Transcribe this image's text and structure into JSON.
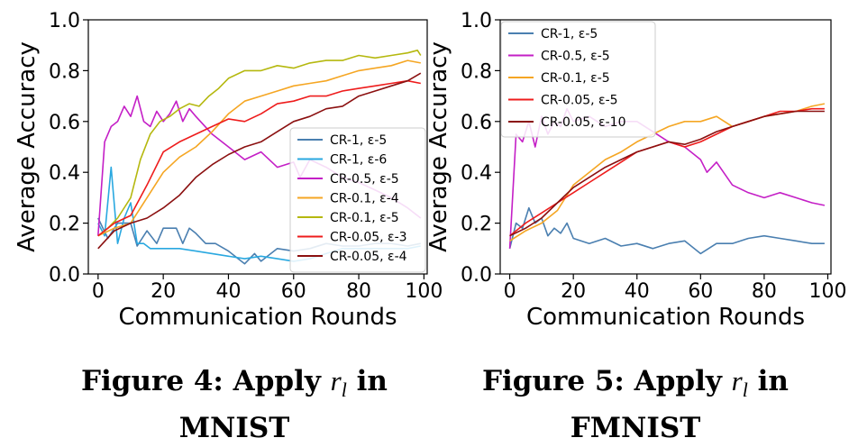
{
  "figures": [
    {
      "caption_prefix": "Figure 4: Apply ",
      "caption_math": "r",
      "caption_sub": "l",
      "caption_suffix": " in",
      "caption_line2": "MNIST"
    },
    {
      "caption_prefix": "Figure 5: Apply ",
      "caption_math": "r",
      "caption_sub": "l",
      "caption_suffix": " in",
      "caption_line2": "FMNIST"
    }
  ],
  "chart_data": [
    {
      "type": "line",
      "xlabel": "Communication Rounds",
      "ylabel": "Average Accuracy",
      "xlim": [
        -3,
        101
      ],
      "ylim": [
        0.0,
        1.0
      ],
      "xticks": [
        0,
        20,
        40,
        60,
        80,
        100
      ],
      "yticks": [
        0.0,
        0.2,
        0.4,
        0.6,
        0.8,
        1.0
      ],
      "tick_labels_y": [
        "0.0",
        "0.2",
        "0.4",
        "0.6",
        "0.8",
        "1.0"
      ],
      "tick_labels_x": [
        "0",
        "20",
        "40",
        "60",
        "80",
        "100"
      ],
      "grid": false,
      "legend_position": "right",
      "series": [
        {
          "name": "CR-1, ε-5",
          "color": "#4a7fb0",
          "x": [
            0,
            3,
            6,
            10,
            12,
            15,
            18,
            20,
            24,
            26,
            28,
            30,
            33,
            36,
            40,
            43,
            45,
            48,
            50,
            55,
            60,
            65,
            70,
            75,
            80,
            85,
            90,
            95,
            99
          ],
          "y": [
            0.22,
            0.14,
            0.2,
            0.2,
            0.11,
            0.17,
            0.12,
            0.18,
            0.18,
            0.12,
            0.18,
            0.16,
            0.12,
            0.12,
            0.09,
            0.06,
            0.04,
            0.08,
            0.05,
            0.1,
            0.09,
            0.1,
            0.12,
            0.11,
            0.11,
            0.12,
            0.12,
            0.11,
            0.12
          ]
        },
        {
          "name": "CR-1, ε-6",
          "color": "#29a8e0",
          "x": [
            0,
            2,
            4,
            6,
            8,
            10,
            12,
            14,
            16,
            20,
            25,
            30,
            35,
            40,
            45,
            50,
            55,
            60,
            65,
            70,
            75,
            80,
            85,
            90,
            95,
            99
          ],
          "y": [
            0.2,
            0.15,
            0.42,
            0.12,
            0.22,
            0.28,
            0.12,
            0.12,
            0.1,
            0.1,
            0.1,
            0.09,
            0.08,
            0.07,
            0.06,
            0.07,
            0.06,
            0.05,
            0.06,
            0.08,
            0.1,
            0.1,
            0.1,
            0.1,
            0.1,
            0.11
          ]
        },
        {
          "name": "CR-0.5, ε-5",
          "color": "#c41fc6",
          "x": [
            0,
            2,
            4,
            6,
            8,
            10,
            12,
            14,
            16,
            18,
            20,
            22,
            24,
            26,
            28,
            30,
            35,
            40,
            45,
            50,
            55,
            60,
            62,
            65,
            70,
            75,
            80,
            85,
            90,
            95,
            99
          ],
          "y": [
            0.15,
            0.52,
            0.58,
            0.6,
            0.66,
            0.62,
            0.7,
            0.6,
            0.58,
            0.64,
            0.6,
            0.63,
            0.68,
            0.6,
            0.65,
            0.62,
            0.55,
            0.5,
            0.45,
            0.48,
            0.42,
            0.44,
            0.38,
            0.45,
            0.42,
            0.38,
            0.36,
            0.33,
            0.3,
            0.26,
            0.22
          ]
        },
        {
          "name": "CR-0.1, ε-4",
          "color": "#f5a623",
          "x": [
            0,
            5,
            10,
            15,
            20,
            25,
            30,
            35,
            40,
            45,
            50,
            55,
            60,
            65,
            70,
            75,
            80,
            85,
            90,
            95,
            99
          ],
          "y": [
            0.15,
            0.18,
            0.2,
            0.3,
            0.4,
            0.46,
            0.5,
            0.56,
            0.63,
            0.68,
            0.7,
            0.72,
            0.74,
            0.75,
            0.76,
            0.78,
            0.8,
            0.81,
            0.82,
            0.84,
            0.83
          ]
        },
        {
          "name": "CR-0.1, ε-5",
          "color": "#b5b80f",
          "x": [
            0,
            3,
            6,
            10,
            13,
            16,
            19,
            22,
            25,
            28,
            31,
            34,
            37,
            40,
            45,
            50,
            55,
            60,
            65,
            70,
            75,
            80,
            85,
            90,
            95,
            98,
            99
          ],
          "y": [
            0.15,
            0.18,
            0.22,
            0.3,
            0.45,
            0.55,
            0.6,
            0.62,
            0.65,
            0.67,
            0.66,
            0.7,
            0.73,
            0.77,
            0.8,
            0.8,
            0.82,
            0.81,
            0.83,
            0.84,
            0.84,
            0.86,
            0.85,
            0.86,
            0.87,
            0.88,
            0.86
          ]
        },
        {
          "name": "CR-0.05, ε-3",
          "color": "#ee1c1c",
          "x": [
            0,
            5,
            10,
            15,
            20,
            25,
            30,
            35,
            40,
            45,
            50,
            55,
            60,
            65,
            70,
            75,
            80,
            85,
            90,
            95,
            99
          ],
          "y": [
            0.15,
            0.2,
            0.23,
            0.35,
            0.48,
            0.52,
            0.55,
            0.58,
            0.61,
            0.6,
            0.63,
            0.67,
            0.68,
            0.7,
            0.7,
            0.72,
            0.73,
            0.74,
            0.75,
            0.76,
            0.75
          ]
        },
        {
          "name": "CR-0.05, ε-4",
          "color": "#8b1010",
          "x": [
            0,
            5,
            10,
            15,
            20,
            25,
            30,
            35,
            40,
            45,
            50,
            55,
            60,
            65,
            70,
            75,
            80,
            85,
            90,
            95,
            99
          ],
          "y": [
            0.1,
            0.17,
            0.2,
            0.22,
            0.26,
            0.31,
            0.38,
            0.43,
            0.47,
            0.5,
            0.52,
            0.56,
            0.6,
            0.62,
            0.65,
            0.66,
            0.7,
            0.72,
            0.74,
            0.76,
            0.79
          ]
        }
      ]
    },
    {
      "type": "line",
      "xlabel": "Communication Rounds",
      "ylabel": "Average Accuracy",
      "xlim": [
        -3,
        101
      ],
      "ylim": [
        0.0,
        1.0
      ],
      "xticks": [
        0,
        20,
        40,
        60,
        80,
        100
      ],
      "yticks": [
        0.0,
        0.2,
        0.4,
        0.6,
        0.8,
        1.0
      ],
      "tick_labels_y": [
        "0.0",
        "0.2",
        "0.4",
        "0.6",
        "0.8",
        "1.0"
      ],
      "tick_labels_x": [
        "0",
        "20",
        "40",
        "60",
        "80",
        "100"
      ],
      "grid": false,
      "legend_position": "top-left",
      "series": [
        {
          "name": "CR-1, ε-5",
          "color": "#4a7fb0",
          "x": [
            0,
            2,
            4,
            6,
            8,
            10,
            12,
            14,
            16,
            18,
            20,
            25,
            30,
            35,
            40,
            45,
            50,
            55,
            60,
            65,
            70,
            75,
            80,
            85,
            90,
            95,
            99
          ],
          "y": [
            0.1,
            0.2,
            0.18,
            0.26,
            0.2,
            0.22,
            0.15,
            0.18,
            0.16,
            0.2,
            0.14,
            0.12,
            0.14,
            0.11,
            0.12,
            0.1,
            0.12,
            0.13,
            0.08,
            0.12,
            0.12,
            0.14,
            0.15,
            0.14,
            0.13,
            0.12,
            0.12
          ]
        },
        {
          "name": "CR-0.5, ε-5",
          "color": "#c41fc6",
          "x": [
            0,
            2,
            4,
            6,
            8,
            10,
            12,
            14,
            16,
            18,
            20,
            25,
            30,
            35,
            40,
            45,
            50,
            55,
            60,
            62,
            65,
            70,
            75,
            80,
            85,
            90,
            95,
            99
          ],
          "y": [
            0.1,
            0.55,
            0.52,
            0.6,
            0.5,
            0.62,
            0.55,
            0.6,
            0.58,
            0.65,
            0.6,
            0.62,
            0.58,
            0.6,
            0.6,
            0.56,
            0.52,
            0.5,
            0.45,
            0.4,
            0.44,
            0.35,
            0.32,
            0.3,
            0.32,
            0.3,
            0.28,
            0.27
          ]
        },
        {
          "name": "CR-0.1, ε-5",
          "color": "#f5a623",
          "x": [
            0,
            5,
            10,
            15,
            20,
            25,
            30,
            35,
            40,
            45,
            50,
            55,
            60,
            65,
            70,
            75,
            80,
            85,
            90,
            95,
            99
          ],
          "y": [
            0.13,
            0.17,
            0.2,
            0.25,
            0.35,
            0.4,
            0.45,
            0.48,
            0.52,
            0.55,
            0.58,
            0.6,
            0.6,
            0.62,
            0.58,
            0.6,
            0.62,
            0.63,
            0.64,
            0.66,
            0.67
          ]
        },
        {
          "name": "CR-0.05, ε-5",
          "color": "#ee1c1c",
          "x": [
            0,
            5,
            10,
            15,
            20,
            25,
            30,
            35,
            40,
            45,
            50,
            55,
            60,
            65,
            70,
            75,
            80,
            85,
            90,
            95,
            99
          ],
          "y": [
            0.15,
            0.2,
            0.24,
            0.28,
            0.32,
            0.36,
            0.4,
            0.44,
            0.48,
            0.5,
            0.52,
            0.5,
            0.52,
            0.55,
            0.58,
            0.6,
            0.62,
            0.64,
            0.64,
            0.65,
            0.65
          ]
        },
        {
          "name": "CR-0.05, ε-10",
          "color": "#8b1010",
          "x": [
            0,
            5,
            10,
            15,
            20,
            25,
            30,
            35,
            40,
            45,
            50,
            55,
            60,
            65,
            70,
            75,
            80,
            85,
            90,
            95,
            99
          ],
          "y": [
            0.15,
            0.18,
            0.22,
            0.28,
            0.34,
            0.38,
            0.42,
            0.45,
            0.48,
            0.5,
            0.52,
            0.51,
            0.53,
            0.56,
            0.58,
            0.6,
            0.62,
            0.63,
            0.64,
            0.64,
            0.64
          ]
        }
      ]
    }
  ]
}
